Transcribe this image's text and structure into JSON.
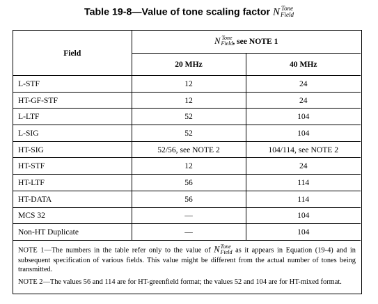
{
  "title": {
    "text": "Table 19-8—Value of tone scaling factor",
    "symbol": {
      "base": "N",
      "superscript": "Tone",
      "subscript": "Field"
    }
  },
  "table": {
    "header": {
      "field_label": "Field",
      "group_suffix": ", see NOTE 1",
      "col_20": "20 MHz",
      "col_40": "40 MHz"
    },
    "rows": [
      {
        "field": "L-STF",
        "mhz20": "12",
        "mhz40": "24"
      },
      {
        "field": "HT-GF-STF",
        "mhz20": "12",
        "mhz40": "24"
      },
      {
        "field": "L-LTF",
        "mhz20": "52",
        "mhz40": "104"
      },
      {
        "field": "L-SIG",
        "mhz20": "52",
        "mhz40": "104"
      },
      {
        "field": "HT-SIG",
        "mhz20": "52/56, see NOTE 2",
        "mhz40": "104/114, see NOTE 2"
      },
      {
        "field": "HT-STF",
        "mhz20": "12",
        "mhz40": "24"
      },
      {
        "field": "HT-LTF",
        "mhz20": "56",
        "mhz40": "114"
      },
      {
        "field": "HT-DATA",
        "mhz20": "56",
        "mhz40": "114"
      },
      {
        "field": "MCS 32",
        "mhz20": "—",
        "mhz40": "104"
      },
      {
        "field": "Non-HT Duplicate",
        "mhz20": "—",
        "mhz40": "104"
      }
    ]
  },
  "notes": {
    "note1_before": "NOTE 1—The numbers in the table refer only to the value of",
    "note1_after": "as it appears in Equation (19-4) and in subsequent specification of various fields. This value might be different from the actual number of tones being transmitted.",
    "note2": "NOTE 2—The values 56 and 114 are for HT-greenfield format; the values 52 and 104 are for HT-mixed format."
  }
}
